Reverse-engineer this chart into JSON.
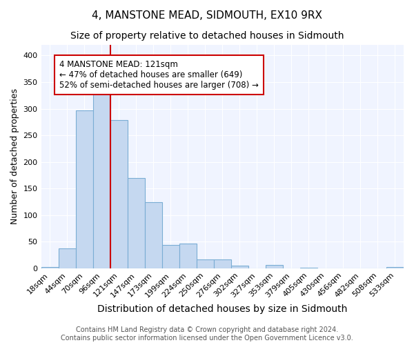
{
  "title": "4, MANSTONE MEAD, SIDMOUTH, EX10 9RX",
  "subtitle": "Size of property relative to detached houses in Sidmouth",
  "xlabel": "Distribution of detached houses by size in Sidmouth",
  "ylabel": "Number of detached properties",
  "categories": [
    "18sqm",
    "44sqm",
    "70sqm",
    "96sqm",
    "121sqm",
    "147sqm",
    "173sqm",
    "199sqm",
    "224sqm",
    "250sqm",
    "276sqm",
    "302sqm",
    "327sqm",
    "353sqm",
    "379sqm",
    "405sqm",
    "430sqm",
    "456sqm",
    "482sqm",
    "508sqm",
    "533sqm"
  ],
  "values": [
    3,
    38,
    297,
    330,
    278,
    170,
    124,
    44,
    46,
    16,
    17,
    5,
    0,
    6,
    0,
    1,
    0,
    0,
    0,
    0,
    2
  ],
  "bar_color": "#c5d8f0",
  "bar_edge_color": "#7aadd4",
  "highlight_index": 4,
  "highlight_line_color": "#cc0000",
  "annotation_text": "4 MANSTONE MEAD: 121sqm\n← 47% of detached houses are smaller (649)\n52% of semi-detached houses are larger (708) →",
  "annotation_box_color": "#ffffff",
  "annotation_box_edge_color": "#cc0000",
  "ylim": [
    0,
    420
  ],
  "yticks": [
    0,
    50,
    100,
    150,
    200,
    250,
    300,
    350,
    400
  ],
  "background_color": "#ffffff",
  "plot_background_color": "#f0f4ff",
  "footer_line1": "Contains HM Land Registry data © Crown copyright and database right 2024.",
  "footer_line2": "Contains public sector information licensed under the Open Government Licence v3.0.",
  "title_fontsize": 11,
  "subtitle_fontsize": 10,
  "xlabel_fontsize": 10,
  "ylabel_fontsize": 9,
  "tick_fontsize": 8,
  "annotation_fontsize": 8.5,
  "footer_fontsize": 7
}
